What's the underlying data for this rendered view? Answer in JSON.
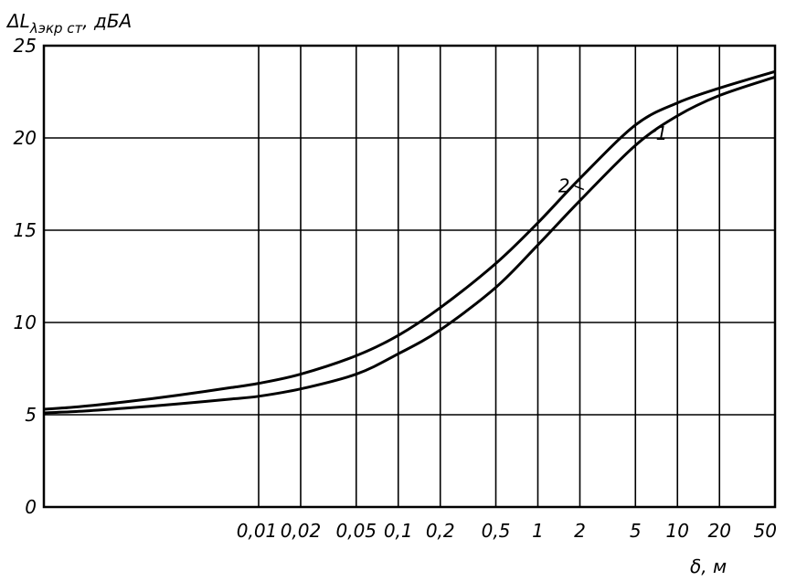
{
  "chart_data": {
    "type": "line",
    "ylabel": "ΔL",
    "ylabel_sub": "λэкр ст",
    "ylabel_unit": ", дБА",
    "xlabel": "δ, м",
    "x_scale": "log",
    "ylim": [
      0,
      25
    ],
    "y_ticks": [
      0,
      5,
      10,
      15,
      20,
      25
    ],
    "y_tick_labels": [
      "0",
      "5",
      "10",
      "15",
      "20",
      "25"
    ],
    "x_ticks": [
      0.01,
      0.02,
      0.05,
      0.1,
      0.2,
      0.5,
      1,
      2,
      5,
      10,
      20,
      50
    ],
    "x_tick_labels": [
      "0,01",
      "0,02",
      "0,05",
      "0,1",
      "0,2",
      "0,5",
      "1",
      "2",
      "5",
      "10",
      "20",
      "50"
    ],
    "grid": true,
    "series": [
      {
        "name": "1",
        "x": [
          0.01,
          0.02,
          0.05,
          0.1,
          0.2,
          0.5,
          1,
          2,
          5,
          10,
          20,
          50
        ],
        "y": [
          6.0,
          6.4,
          7.2,
          8.3,
          9.6,
          11.9,
          14.2,
          16.6,
          19.6,
          21.2,
          22.3,
          23.3
        ],
        "start_y": 5.1
      },
      {
        "name": "2",
        "x": [
          0.01,
          0.02,
          0.05,
          0.1,
          0.2,
          0.5,
          1,
          2,
          5,
          10,
          20,
          50
        ],
        "y": [
          6.7,
          7.2,
          8.2,
          9.3,
          10.8,
          13.2,
          15.4,
          17.8,
          20.7,
          21.9,
          22.7,
          23.6
        ],
        "start_y": 5.3
      }
    ]
  }
}
